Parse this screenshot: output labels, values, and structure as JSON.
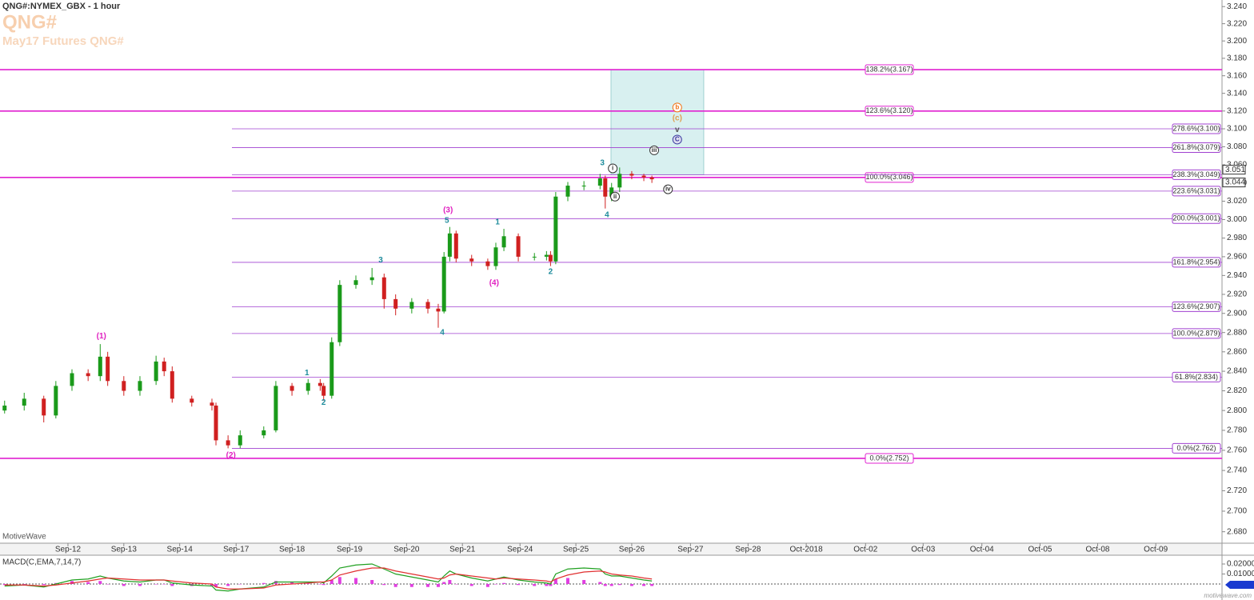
{
  "chart_data": [
    {
      "type": "candlestick",
      "title": "QNG#:NYMEX_GBX - 1 hour",
      "symbol": "QNG#",
      "subtitle": "May17 Futures QNG#",
      "watermark": "MotiveWave",
      "footer": "motivewave.com",
      "log": true,
      "up_color": "#1a9a1a",
      "down_color": "#d02020",
      "xlim": [
        -1.18,
        20.04
      ],
      "ylim": [
        2.6697,
        3.2477
      ],
      "xticks": [
        {
          "value": 0,
          "label": "Sep-12"
        },
        {
          "value": 0.97,
          "label": "Sep-13"
        },
        {
          "value": 1.94,
          "label": "Sep-14"
        },
        {
          "value": 2.92,
          "label": "Sep-17"
        },
        {
          "value": 3.89,
          "label": "Sep-18"
        },
        {
          "value": 4.89,
          "label": "Sep-19"
        },
        {
          "value": 5.88,
          "label": "Sep-20"
        },
        {
          "value": 6.85,
          "label": "Sep-21"
        },
        {
          "value": 7.85,
          "label": "Sep-24"
        },
        {
          "value": 8.82,
          "label": "Sep-25"
        },
        {
          "value": 9.79,
          "label": "Sep-26"
        },
        {
          "value": 10.81,
          "label": "Sep-27"
        },
        {
          "value": 11.81,
          "label": "Sep-28"
        },
        {
          "value": 12.82,
          "label": "Oct-2018"
        },
        {
          "value": 13.85,
          "label": "Oct-02"
        },
        {
          "value": 14.85,
          "label": "Oct-03"
        },
        {
          "value": 15.87,
          "label": "Oct-04"
        },
        {
          "value": 16.88,
          "label": "Oct-05"
        },
        {
          "value": 17.88,
          "label": "Oct-08"
        },
        {
          "value": 18.89,
          "label": "Oct-09"
        }
      ],
      "yticks": [
        {
          "value": 2.68,
          "label": "2.680"
        },
        {
          "value": 2.7,
          "label": "2.700"
        },
        {
          "value": 2.72,
          "label": "2.720"
        },
        {
          "value": 2.74,
          "label": "2.740"
        },
        {
          "value": 2.76,
          "label": "2.760"
        },
        {
          "value": 2.78,
          "label": "2.780"
        },
        {
          "value": 2.8,
          "label": "2.800"
        },
        {
          "value": 2.82,
          "label": "2.820"
        },
        {
          "value": 2.84,
          "label": "2.840"
        },
        {
          "value": 2.86,
          "label": "2.860"
        },
        {
          "value": 2.88,
          "label": "2.880"
        },
        {
          "value": 2.9,
          "label": "2.900"
        },
        {
          "value": 2.92,
          "label": "2.920"
        },
        {
          "value": 2.94,
          "label": "2.940"
        },
        {
          "value": 2.96,
          "label": "2.960"
        },
        {
          "value": 2.98,
          "label": "2.980"
        },
        {
          "value": 3.0,
          "label": "3.000"
        },
        {
          "value": 3.02,
          "label": "3.020"
        },
        {
          "value": 3.04,
          "label": "3.040"
        },
        {
          "value": 3.06,
          "label": "3.060"
        },
        {
          "value": 3.08,
          "label": "3.080"
        },
        {
          "value": 3.1,
          "label": "3.100"
        },
        {
          "value": 3.12,
          "label": "3.120"
        },
        {
          "value": 3.14,
          "label": "3.140"
        },
        {
          "value": 3.16,
          "label": "3.160"
        },
        {
          "value": 3.18,
          "label": "3.180"
        },
        {
          "value": 3.2,
          "label": "3.200"
        },
        {
          "value": 3.22,
          "label": "3.220"
        },
        {
          "value": 3.24,
          "label": "3.240"
        }
      ],
      "x": [
        -1.1,
        -0.76,
        -0.42,
        -0.21,
        0.07,
        0.35,
        0.56,
        0.69,
        0.97,
        1.25,
        1.53,
        1.67,
        1.81,
        2.15,
        2.5,
        2.57,
        2.78,
        2.99,
        3.4,
        3.61,
        3.89,
        4.17,
        4.38,
        4.44,
        4.58,
        4.72,
        5.0,
        5.28,
        5.49,
        5.69,
        5.97,
        6.25,
        6.43,
        6.53,
        6.63,
        6.74,
        7.01,
        7.29,
        7.43,
        7.57,
        7.82,
        8.1,
        8.31,
        8.38,
        8.47,
        8.68,
        8.96,
        9.24,
        9.33,
        9.44,
        9.58,
        9.79,
        10.0,
        10.14
      ],
      "open": [
        2.8,
        2.805,
        2.812,
        2.795,
        2.825,
        2.838,
        2.835,
        2.855,
        2.83,
        2.82,
        2.83,
        2.85,
        2.84,
        2.812,
        2.808,
        2.805,
        2.77,
        2.765,
        2.775,
        2.78,
        2.825,
        2.82,
        2.828,
        2.825,
        2.815,
        2.87,
        2.93,
        2.935,
        2.938,
        2.915,
        2.905,
        2.912,
        2.905,
        2.902,
        2.96,
        2.985,
        2.958,
        2.955,
        2.95,
        2.97,
        2.982,
        2.96,
        2.96,
        2.962,
        2.955,
        3.025,
        3.037,
        3.037,
        3.045,
        3.025,
        3.035,
        3.05,
        3.048,
        3.046
      ],
      "high": [
        2.81,
        2.818,
        2.815,
        2.83,
        2.842,
        2.842,
        2.868,
        2.86,
        2.835,
        2.835,
        2.856,
        2.854,
        2.845,
        2.815,
        2.812,
        2.808,
        2.775,
        2.78,
        2.784,
        2.83,
        2.828,
        2.832,
        2.832,
        2.828,
        2.875,
        2.935,
        2.94,
        2.948,
        2.942,
        2.92,
        2.916,
        2.915,
        2.91,
        2.965,
        2.992,
        2.988,
        2.962,
        2.958,
        2.975,
        2.99,
        2.985,
        2.964,
        2.966,
        2.966,
        3.03,
        3.041,
        3.042,
        3.05,
        3.048,
        3.04,
        3.057,
        3.053,
        3.05,
        3.048
      ],
      "low": [
        2.797,
        2.8,
        2.788,
        2.792,
        2.82,
        2.83,
        2.83,
        2.825,
        2.815,
        2.815,
        2.826,
        2.835,
        2.808,
        2.804,
        2.8,
        2.765,
        2.762,
        2.762,
        2.772,
        2.778,
        2.815,
        2.816,
        2.82,
        2.81,
        2.812,
        2.866,
        2.926,
        2.93,
        2.905,
        2.898,
        2.9,
        2.9,
        2.885,
        2.9,
        2.955,
        2.954,
        2.95,
        2.946,
        2.946,
        2.966,
        2.955,
        2.956,
        2.956,
        2.95,
        2.952,
        3.02,
        3.032,
        3.033,
        3.012,
        3.02,
        3.03,
        3.044,
        3.042,
        3.04
      ],
      "close": [
        2.805,
        2.812,
        2.795,
        2.825,
        2.838,
        2.835,
        2.855,
        2.83,
        2.82,
        2.83,
        2.85,
        2.84,
        2.812,
        2.808,
        2.805,
        2.77,
        2.765,
        2.775,
        2.78,
        2.825,
        2.82,
        2.828,
        2.825,
        2.815,
        2.87,
        2.93,
        2.935,
        2.938,
        2.915,
        2.905,
        2.912,
        2.905,
        2.902,
        2.96,
        2.985,
        2.958,
        2.955,
        2.95,
        2.97,
        2.982,
        2.96,
        2.96,
        2.962,
        2.955,
        3.025,
        3.037,
        3.037,
        3.045,
        3.025,
        3.035,
        3.05,
        3.048,
        3.046,
        3.044
      ],
      "fib_major": {
        "color": "#e020d0",
        "levels": [
          {
            "value": 3.167,
            "label": "138.2%(3.167)"
          },
          {
            "value": 3.12,
            "label": "123.6%(3.120)"
          },
          {
            "value": 3.046,
            "label": "100.0%(3.046)"
          },
          {
            "value": 2.752,
            "label": "0.0%(2.752)"
          }
        ]
      },
      "fib_minor": {
        "color": "#a040d0",
        "levels": [
          {
            "value": 3.1,
            "label": "278.6%(3.100)"
          },
          {
            "value": 3.079,
            "label": "261.8%(3.079)"
          },
          {
            "value": 3.049,
            "label": "238.3%(3.049)"
          },
          {
            "value": 3.031,
            "label": "223.6%(3.031)"
          },
          {
            "value": 3.001,
            "label": "200.0%(3.001)"
          },
          {
            "value": 2.954,
            "label": "161.8%(2.954)"
          },
          {
            "value": 2.907,
            "label": "123.6%(2.907)"
          },
          {
            "value": 2.879,
            "label": "100.0%(2.879)"
          },
          {
            "value": 2.834,
            "label": "61.8%(2.834)"
          },
          {
            "value": 2.762,
            "label": "0.0%(2.762)"
          }
        ]
      },
      "target_zone": {
        "xlim": [
          9.43,
          11.04
        ],
        "ylim": [
          3.049,
          3.167
        ],
        "color": "#d8f0f0"
      },
      "price_tags": [
        3.051,
        3.044
      ],
      "annotations": [
        {
          "text": "(1)",
          "x": 0.58,
          "y": 2.876,
          "color": "#e020c0"
        },
        {
          "text": "(2)",
          "x": 2.83,
          "y": 2.755,
          "color": "#e020c0"
        },
        {
          "text": "1",
          "x": 4.15,
          "y": 2.838,
          "color": "#1e8c9c"
        },
        {
          "text": "2",
          "x": 4.44,
          "y": 2.808,
          "color": "#1e8c9c"
        },
        {
          "text": "3",
          "x": 5.43,
          "y": 2.956,
          "color": "#1e8c9c"
        },
        {
          "text": "4",
          "x": 6.5,
          "y": 2.88,
          "color": "#1e8c9c"
        },
        {
          "text": "(3)",
          "x": 6.6,
          "y": 3.01,
          "color": "#e020c0"
        },
        {
          "text": "5",
          "x": 6.58,
          "y": 2.999,
          "color": "#1e8c9c"
        },
        {
          "text": "(4)",
          "x": 7.4,
          "y": 2.932,
          "color": "#e020c0"
        },
        {
          "text": "1",
          "x": 7.46,
          "y": 2.997,
          "color": "#1e8c9c"
        },
        {
          "text": "2",
          "x": 8.38,
          "y": 2.944,
          "color": "#1e8c9c"
        },
        {
          "text": "3",
          "x": 9.28,
          "y": 3.062,
          "color": "#1e8c9c"
        },
        {
          "text": "4",
          "x": 9.36,
          "y": 3.005,
          "color": "#1e8c9c"
        },
        {
          "text": "i",
          "x": 9.46,
          "y": 3.056,
          "color": "#333333",
          "circle": true
        },
        {
          "text": "ii",
          "x": 9.5,
          "y": 3.025,
          "color": "#333333",
          "circle": true
        },
        {
          "text": "iii",
          "x": 10.18,
          "y": 3.076,
          "color": "#333333",
          "circle": true
        },
        {
          "text": "iv",
          "x": 10.42,
          "y": 3.033,
          "color": "#333333",
          "circle": true
        },
        {
          "text": "C",
          "x": 10.58,
          "y": 3.088,
          "color": "#3a3aa0",
          "circle": true
        },
        {
          "text": "v",
          "x": 10.58,
          "y": 3.099,
          "color": "#555555"
        },
        {
          "text": "(c)",
          "x": 10.58,
          "y": 3.112,
          "color": "#e0a050"
        },
        {
          "text": "b",
          "x": 10.58,
          "y": 3.124,
          "color": "#f07010",
          "circle": true
        }
      ]
    },
    {
      "type": "macd",
      "title": "MACD(C,EMA,7,14,7)",
      "ylim": [
        -0.008,
        0.028
      ],
      "yticks": [
        {
          "value": 0.02,
          "label": "0.02000"
        },
        {
          "value": 0.01,
          "label": "0.01000"
        }
      ],
      "series": [
        {
          "color": "#20a020",
          "values": [
            -0.002,
            -0.001,
            -0.003,
            0.0,
            0.004,
            0.005,
            0.008,
            0.006,
            0.003,
            0.002,
            0.004,
            0.004,
            0.001,
            -0.001,
            -0.002,
            -0.006,
            -0.007,
            -0.005,
            -0.003,
            0.002,
            0.002,
            0.002,
            0.002,
            0.001,
            0.008,
            0.016,
            0.019,
            0.02,
            0.015,
            0.01,
            0.007,
            0.004,
            0.002,
            0.008,
            0.013,
            0.01,
            0.006,
            0.003,
            0.005,
            0.007,
            0.004,
            0.002,
            0.001,
            0.0,
            0.01,
            0.015,
            0.016,
            0.015,
            0.01,
            0.008,
            0.008,
            0.006,
            0.004,
            0.003
          ]
        },
        {
          "color": "#e03030",
          "values": [
            -0.001,
            -0.001,
            -0.002,
            -0.001,
            0.001,
            0.003,
            0.005,
            0.006,
            0.005,
            0.004,
            0.004,
            0.004,
            0.003,
            0.001,
            0.0,
            -0.003,
            -0.005,
            -0.005,
            -0.004,
            -0.001,
            0.0,
            0.001,
            0.002,
            0.002,
            0.004,
            0.009,
            0.013,
            0.016,
            0.016,
            0.013,
            0.01,
            0.007,
            0.005,
            0.006,
            0.009,
            0.01,
            0.008,
            0.006,
            0.005,
            0.006,
            0.005,
            0.004,
            0.003,
            0.002,
            0.005,
            0.009,
            0.012,
            0.013,
            0.012,
            0.01,
            0.009,
            0.008,
            0.006,
            0.005
          ]
        }
      ],
      "histogram": {
        "color": "#e040e0",
        "values": [
          -0.001,
          0.0,
          -0.001,
          0.001,
          0.003,
          0.002,
          0.003,
          0.0,
          -0.002,
          -0.002,
          0.0,
          0.0,
          -0.002,
          -0.002,
          -0.002,
          -0.003,
          -0.002,
          0.0,
          0.001,
          0.003,
          0.002,
          0.001,
          0.0,
          -0.001,
          0.004,
          0.007,
          0.006,
          0.004,
          -0.001,
          -0.003,
          -0.003,
          -0.003,
          -0.003,
          0.002,
          0.004,
          0.0,
          -0.002,
          -0.003,
          0.0,
          0.001,
          -0.001,
          -0.002,
          -0.002,
          -0.002,
          0.005,
          0.006,
          0.004,
          0.002,
          -0.002,
          -0.002,
          -0.001,
          -0.002,
          -0.002,
          -0.002
        ]
      }
    }
  ]
}
